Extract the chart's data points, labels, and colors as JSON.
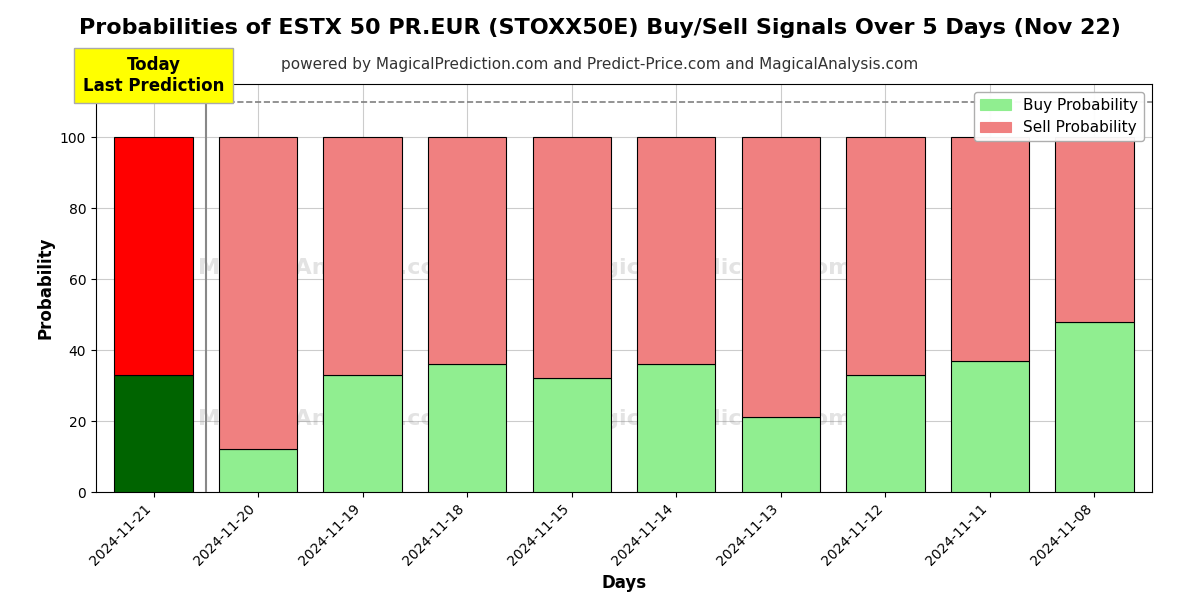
{
  "title": "Probabilities of ESTX 50 PR.EUR (STOXX50E) Buy/Sell Signals Over 5 Days (Nov 22)",
  "subtitle": "powered by MagicalPrediction.com and Predict-Price.com and MagicalAnalysis.com",
  "xlabel": "Days",
  "ylabel": "Probability",
  "dates": [
    "2024-11-21",
    "2024-11-20",
    "2024-11-19",
    "2024-11-18",
    "2024-11-15",
    "2024-11-14",
    "2024-11-13",
    "2024-11-12",
    "2024-11-11",
    "2024-11-08"
  ],
  "buy_values": [
    33,
    12,
    33,
    36,
    32,
    36,
    21,
    33,
    37,
    48
  ],
  "sell_values": [
    67,
    88,
    67,
    64,
    68,
    64,
    79,
    67,
    63,
    52
  ],
  "today_bar_buy_color": "#006400",
  "today_bar_sell_color": "#ff0000",
  "regular_bar_buy_color": "#90EE90",
  "regular_bar_sell_color": "#F08080",
  "bar_edge_color": "#000000",
  "bar_width": 0.75,
  "ylim": [
    0,
    115
  ],
  "yticks": [
    0,
    20,
    40,
    60,
    80,
    100
  ],
  "dashed_line_y": 110,
  "dashed_line_color": "#808080",
  "grid_color": "#cccccc",
  "annotation_text": "Today\nLast Prediction",
  "annotation_bg_color": "#ffff00",
  "annotation_fontsize": 12,
  "title_fontsize": 16,
  "subtitle_fontsize": 11,
  "axis_label_fontsize": 12,
  "tick_fontsize": 10,
  "legend_fontsize": 11,
  "separator_color": "#888888"
}
